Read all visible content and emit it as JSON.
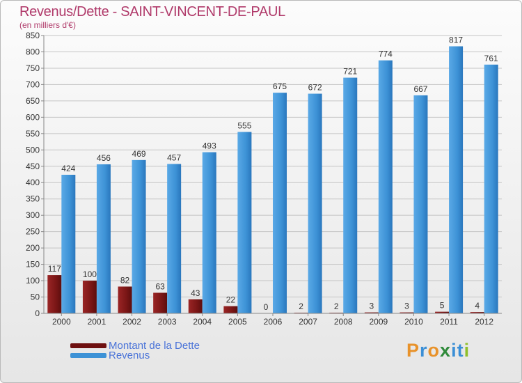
{
  "chart_data": {
    "type": "bar",
    "title": "Revenus/Dette - SAINT-VINCENT-DE-PAUL",
    "subtitle": "(en milliers d'€)",
    "categories": [
      "2000",
      "2001",
      "2002",
      "2003",
      "2004",
      "2005",
      "2006",
      "2007",
      "2008",
      "2009",
      "2010",
      "2011",
      "2012"
    ],
    "series": [
      {
        "name": "Montant de la Dette",
        "color": "#7a1616",
        "values": [
          117,
          100,
          82,
          63,
          43,
          22,
          0,
          2,
          2,
          3,
          3,
          5,
          4
        ]
      },
      {
        "name": "Revenus",
        "color": "#3d92d6",
        "values": [
          424,
          456,
          469,
          457,
          493,
          555,
          675,
          672,
          721,
          774,
          667,
          817,
          761
        ]
      }
    ],
    "ylim": [
      0,
      850
    ],
    "yticks": [
      0,
      50,
      100,
      150,
      200,
      250,
      300,
      350,
      400,
      450,
      500,
      550,
      600,
      650,
      700,
      750,
      800,
      850
    ],
    "grid": true,
    "legend_position": "bottom-left"
  },
  "legend": {
    "debt_label": "Montant de la Dette",
    "revenue_label": "Revenus"
  },
  "logo": {
    "text": "Proxiti",
    "letters": [
      "P",
      "r",
      "o",
      "x",
      "i",
      "t",
      "i"
    ],
    "colors": [
      "#e8922a",
      "#3b8fd6",
      "#e8922a",
      "#2f8a3a",
      "#3b8fd6",
      "#3b8fd6",
      "#8fbf2a"
    ]
  }
}
